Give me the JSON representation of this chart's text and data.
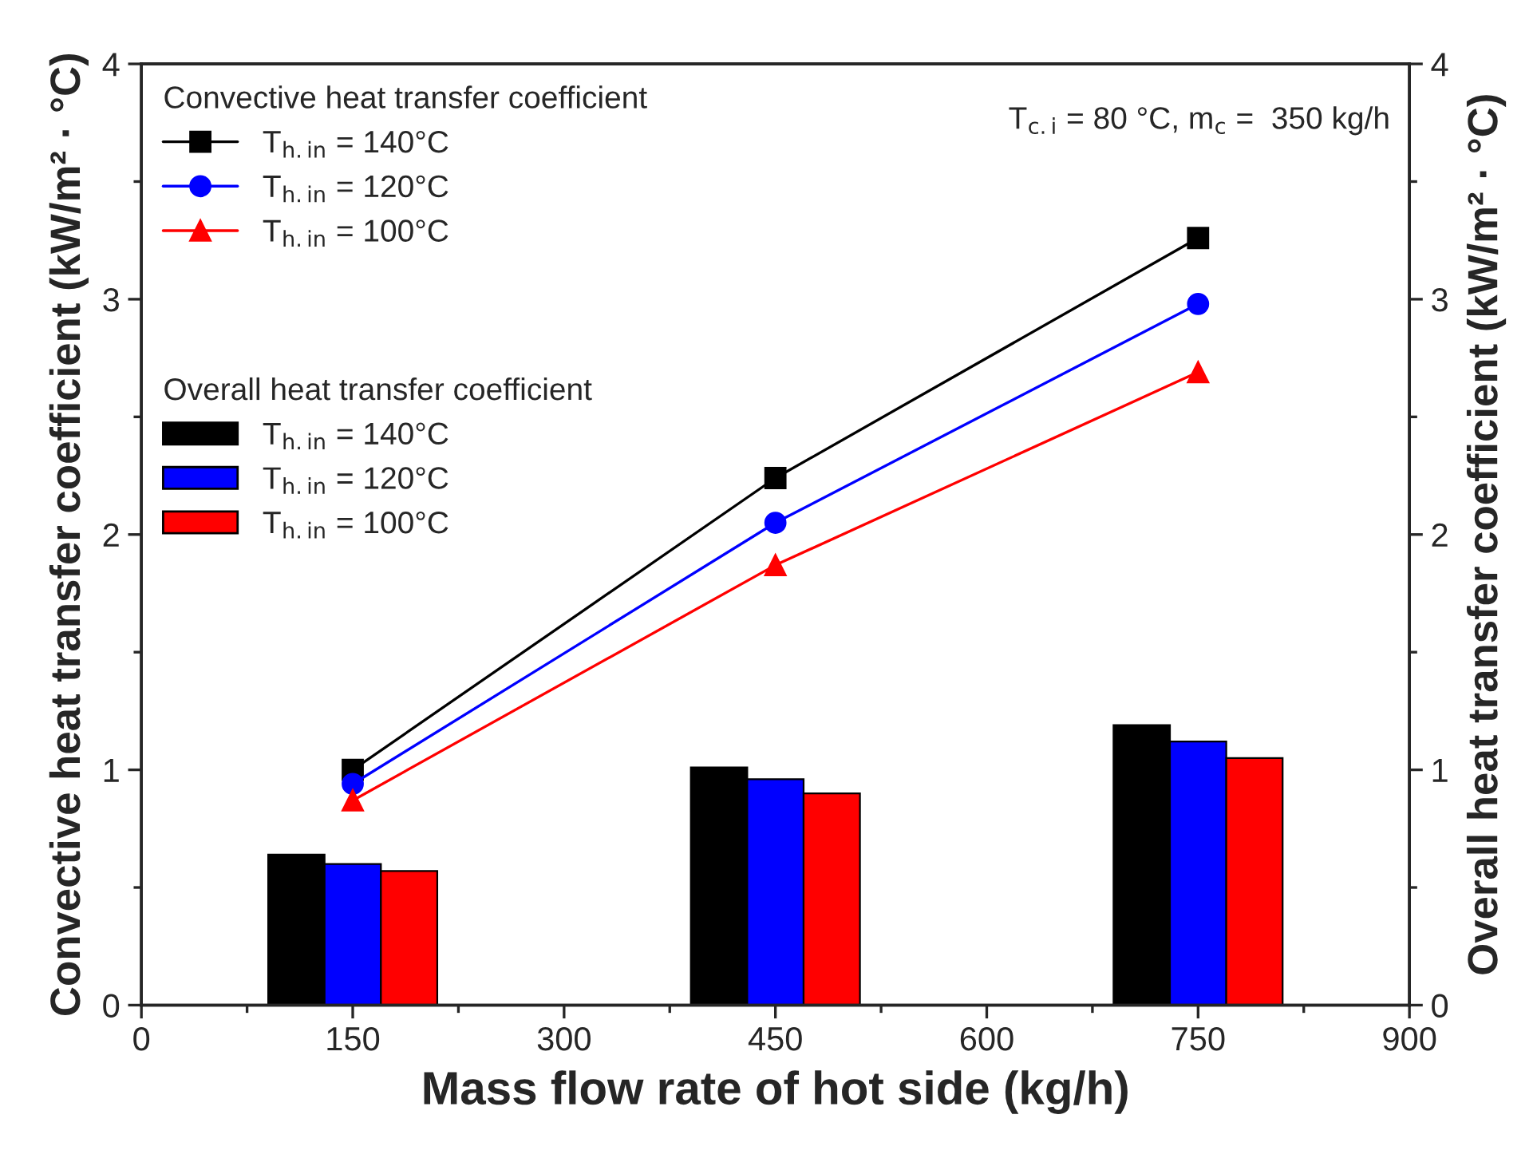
{
  "chart_data": {
    "type": "line",
    "xlabel": "Mass flow rate of hot side (kg/h)",
    "ylabel": "Convective heat transfer coefficient (kW/m² · °C)",
    "y2label": "Overall heat transfer coefficient (kW/m² · °C)",
    "xlim": [
      0,
      900
    ],
    "xticks": [
      0,
      {
        "value": 75,
        "label": null
      },
      150,
      {
        "value": 225,
        "label": null
      },
      300,
      {
        "value": 375,
        "label": null
      },
      450,
      {
        "value": 525,
        "label": null
      },
      600,
      {
        "value": 675,
        "label": null
      },
      750,
      {
        "value": 825,
        "label": null
      },
      900
    ],
    "ylim": [
      0,
      4
    ],
    "yticks": [
      0,
      {
        "value": 0.5,
        "label": null
      },
      1,
      {
        "value": 1.5,
        "label": null
      },
      2,
      {
        "value": 2.5,
        "label": null
      },
      3,
      {
        "value": 3.5,
        "label": null
      },
      4
    ],
    "y2lim": [
      0,
      4
    ],
    "y2ticks": [
      0,
      {
        "value": 0.5,
        "label": null
      },
      1,
      {
        "value": 1.5,
        "label": null
      },
      2,
      {
        "value": 2.5,
        "label": null
      },
      3,
      {
        "value": 3.5,
        "label": null
      },
      4
    ],
    "annotations": [
      "Convective heat transfer coefficient",
      "Overall heat transfer coefficient",
      "T$_{c.i}$ = 80 °C, m$_{c}$ =  350 kg/h"
    ],
    "legend": "top left",
    "grid": false,
    "series": [
      {
        "name": "T$_{h.in}$ = 140°C",
        "color": "#000000",
        "marker": "square",
        "x": [
          150,
          450,
          750
        ],
        "values": [
          1.0,
          2.24,
          3.26
        ]
      },
      {
        "name": "T$_{h.in}$ = 120°C",
        "color": "#0000ff",
        "marker": "circle",
        "x": [
          150,
          450,
          750
        ],
        "values": [
          0.94,
          2.05,
          2.98
        ]
      },
      {
        "name": "T$_{h.in}$ = 100°C",
        "color": "#ff0000",
        "marker": "triangle",
        "x": [
          150,
          450,
          750
        ],
        "values": [
          0.87,
          1.87,
          2.69
        ]
      },
      {
        "type": "bar",
        "axis": "y2",
        "name": "T$_{h.in}$ = 140°C",
        "color": "#000000",
        "x": [
          110,
          410,
          710
        ],
        "values": [
          0.64,
          1.01,
          1.19
        ]
      },
      {
        "type": "bar",
        "axis": "y2",
        "name": "T$_{h.in}$ = 120°C",
        "color": "#0000ff",
        "x": [
          150,
          450,
          750
        ],
        "values": [
          0.6,
          0.96,
          1.12
        ]
      },
      {
        "type": "bar",
        "axis": "y2",
        "name": "T$_{h.in}$ = 100°C",
        "color": "#ff0000",
        "x": [
          190,
          490,
          790
        ],
        "values": [
          0.57,
          0.9,
          1.05
        ]
      }
    ]
  }
}
